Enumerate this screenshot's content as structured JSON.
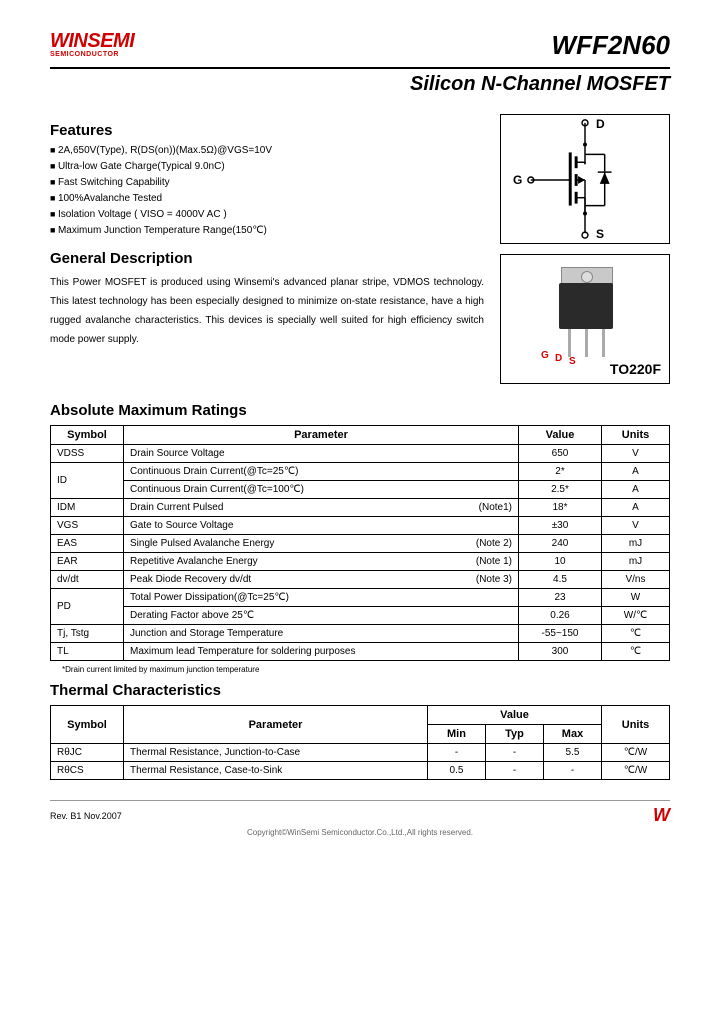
{
  "header": {
    "logo_main": "WINSEMI",
    "logo_sub": "SEMICONDUCTOR",
    "part_number": "WFF2N60",
    "subtitle": "Silicon N-Channel MOSFET"
  },
  "features": {
    "title": "Features",
    "items": [
      "2A,650V(Type), R(DS(on))(Max.5Ω)@VGS=10V",
      "Ultra-low Gate Charge(Typical 9.0nC)",
      "Fast Switching Capability",
      "100%Avalanche Tested",
      "Isolation Voltage ( VISO = 4000V AC )",
      "Maximum Junction Temperature Range(150℃)"
    ]
  },
  "description": {
    "title": "General Description",
    "text": "This Power MOSFET is produced using Winsemi's advanced planar stripe, VDMOS technology. This latest technology has been especially designed to minimize on-state resistance, have a high rugged avalanche characteristics. This devices is specially well suited for high efficiency switch mode power supply."
  },
  "schematic": {
    "pin_d": "D",
    "pin_g": "G",
    "pin_s": "S"
  },
  "package": {
    "label": "TO220F",
    "pin_g": "G",
    "pin_d": "D",
    "pin_s": "S"
  },
  "abs_max": {
    "title": "Absolute Maximum Ratings",
    "columns": [
      "Symbol",
      "Parameter",
      "Value",
      "Units"
    ],
    "rows": [
      {
        "sym": "VDSS",
        "param": "Drain Source Voltage",
        "note": "",
        "val": "650",
        "unit": "V",
        "rowspan": 1
      },
      {
        "sym": "ID",
        "param": "Continuous Drain Current(@Tc=25℃)",
        "note": "",
        "val": "2*",
        "unit": "A",
        "rowspan": 2
      },
      {
        "sym": "",
        "param": "Continuous Drain Current(@Tc=100℃)",
        "note": "",
        "val": "2.5*",
        "unit": "A",
        "rowspan": 0
      },
      {
        "sym": "IDM",
        "param": "Drain Current Pulsed",
        "note": "(Note1)",
        "val": "18*",
        "unit": "A",
        "rowspan": 1
      },
      {
        "sym": "VGS",
        "param": "Gate to Source Voltage",
        "note": "",
        "val": "±30",
        "unit": "V",
        "rowspan": 1
      },
      {
        "sym": "EAS",
        "param": "Single Pulsed Avalanche Energy",
        "note": "(Note 2)",
        "val": "240",
        "unit": "mJ",
        "rowspan": 1
      },
      {
        "sym": "EAR",
        "param": "Repetitive Avalanche Energy",
        "note": "(Note 1)",
        "val": "10",
        "unit": "mJ",
        "rowspan": 1
      },
      {
        "sym": "dv/dt",
        "param": "Peak Diode Recovery dv/dt",
        "note": "(Note 3)",
        "val": "4.5",
        "unit": "V/ns",
        "rowspan": 1
      },
      {
        "sym": "PD",
        "param": "Total Power Dissipation(@Tc=25℃)",
        "note": "",
        "val": "23",
        "unit": "W",
        "rowspan": 2
      },
      {
        "sym": "",
        "param": "Derating Factor above 25℃",
        "note": "",
        "val": "0.26",
        "unit": "W/℃",
        "rowspan": 0
      },
      {
        "sym": "Tj, Tstg",
        "param": "Junction and Storage Temperature",
        "note": "",
        "val": "-55~150",
        "unit": "℃",
        "rowspan": 1
      },
      {
        "sym": "TL",
        "param": "Maximum lead Temperature for soldering purposes",
        "note": "",
        "val": "300",
        "unit": "℃",
        "rowspan": 1
      }
    ],
    "footnote": "*Drain current limited by maximum junction temperature"
  },
  "thermal": {
    "title": "Thermal Characteristics",
    "columns": [
      "Symbol",
      "Parameter",
      "Value",
      "Units"
    ],
    "subcols": [
      "Min",
      "Typ",
      "Max"
    ],
    "rows": [
      {
        "sym": "RθJC",
        "param": "Thermal Resistance, Junction-to-Case",
        "min": "-",
        "typ": "-",
        "max": "5.5",
        "unit": "℃/W"
      },
      {
        "sym": "RθCS",
        "param": "Thermal Resistance, Case-to-Sink",
        "min": "0.5",
        "typ": "-",
        "max": "-",
        "unit": "℃/W"
      }
    ]
  },
  "footer": {
    "rev": "Rev. B1    Nov.2007",
    "logo": "W",
    "copyright": "Copyright©WinSemi Semiconductor.Co.,Ltd.,All rights reserved."
  },
  "colors": {
    "brand": "#d00000",
    "text": "#000000",
    "border": "#000000"
  }
}
